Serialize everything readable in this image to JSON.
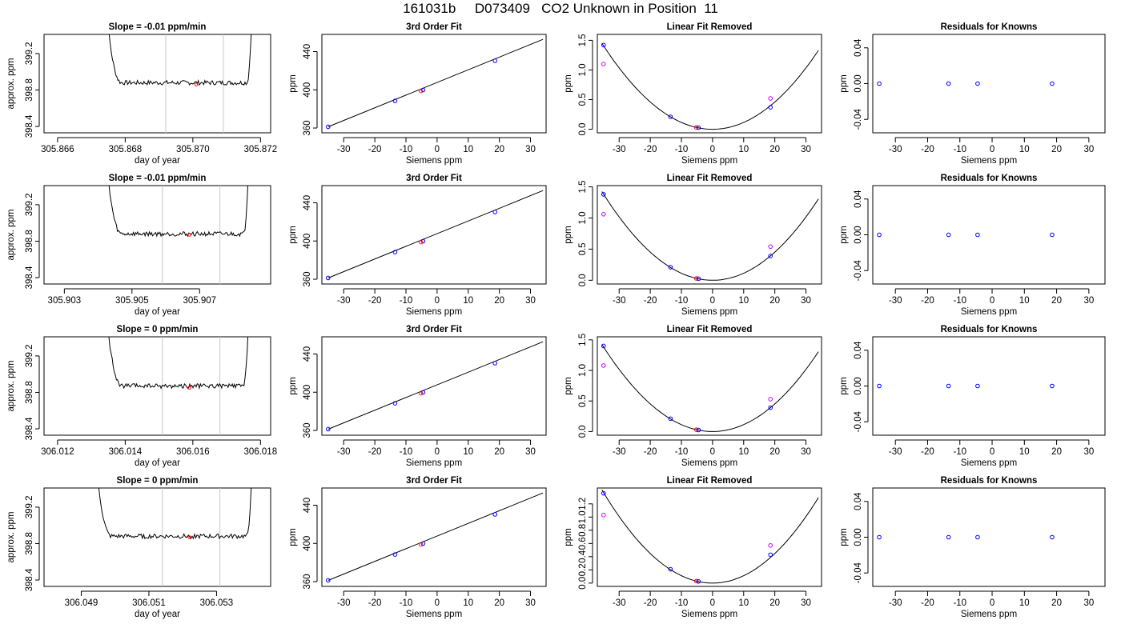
{
  "figure_title": "161031b     D073409   CO2 Unknown in Position  11",
  "colors": {
    "line": "#000000",
    "point_blue": "#0000ff",
    "point_magenta": "#cc00ff",
    "point_red": "#ff0000",
    "vline": "#c8c8c8",
    "axis": "#000000"
  },
  "chart_data": [
    {
      "type": "line",
      "row": 0,
      "col": 0,
      "title": "Slope =  -0.01  ppm/min",
      "xlabel": "day of year",
      "ylabel": "approx. ppm",
      "xlim": [
        305.8656,
        305.8723
      ],
      "ylim": [
        398.33,
        399.41
      ],
      "xticks": [
        305.866,
        305.868,
        305.87,
        305.872
      ],
      "xticklabels": [
        "305.866",
        "305.868",
        "305.870",
        "305.872"
      ],
      "yticks": [
        398.4,
        398.8,
        399.2
      ],
      "yticklabels": [
        "398.4",
        "398.8",
        "399.2"
      ],
      "trace": {
        "x_start": 305.8673,
        "x_end": 305.8718,
        "x_settle": 305.8675,
        "x_end_rise": 305.8716,
        "level": 398.88,
        "noise": 0.025
      },
      "vlines": [
        305.8692,
        305.8709
      ],
      "marker": {
        "x": 305.8701,
        "y": 398.86
      }
    },
    {
      "type": "scatter_fit",
      "row": 0,
      "col": 1,
      "title": "3rd Order Fit",
      "xlabel": "Siemens ppm",
      "ylabel": "ppm",
      "xlim": [
        -37,
        35
      ],
      "ylim": [
        355,
        458
      ],
      "xticks": [
        -30,
        -20,
        -10,
        0,
        10,
        20,
        30
      ],
      "yticks": [
        360,
        400,
        440
      ],
      "line": {
        "x": [
          -35,
          34
        ],
        "y": [
          361.3,
          452.8
        ]
      },
      "points": [
        {
          "x": -35,
          "y": 361.3,
          "c": "blue"
        },
        {
          "x": -13.5,
          "y": 388.4,
          "c": "blue"
        },
        {
          "x": -5.2,
          "y": 398.9,
          "c": "red"
        },
        {
          "x": -4.5,
          "y": 399.8,
          "c": "blue"
        },
        {
          "x": 18.6,
          "y": 430.4,
          "c": "blue"
        }
      ]
    },
    {
      "type": "scatter_curve",
      "row": 0,
      "col": 2,
      "title": "Linear Fit Removed",
      "xlabel": "Siemens ppm",
      "ylabel": "ppm",
      "xlim": [
        -37,
        35
      ],
      "ylim": [
        -0.06,
        1.6
      ],
      "xticks": [
        -30,
        -20,
        -10,
        0,
        10,
        20,
        30
      ],
      "yticks": [
        0,
        0.5,
        1,
        1.5
      ],
      "yticklabels": [
        "0.0",
        "0.5",
        "1.0",
        "1.5"
      ],
      "curve": {
        "a": 0.00115,
        "x_from": -35.5,
        "x_to": 34
      },
      "points": [
        {
          "x": -35,
          "y": 1.42,
          "c": "blue"
        },
        {
          "x": -35,
          "y": 1.1,
          "c": "magenta"
        },
        {
          "x": -13.5,
          "y": 0.21,
          "c": "blue"
        },
        {
          "x": -5.2,
          "y": 0.03,
          "c": "red"
        },
        {
          "x": -4.5,
          "y": 0.025,
          "c": "blue"
        },
        {
          "x": 18.6,
          "y": 0.37,
          "c": "blue"
        },
        {
          "x": 18.6,
          "y": 0.52,
          "c": "magenta"
        }
      ]
    },
    {
      "type": "scatter",
      "row": 0,
      "col": 3,
      "title": "Residuals for Knowns",
      "xlabel": "Siemens ppm",
      "ylabel": "ppm",
      "xlim": [
        -37,
        35
      ],
      "ylim": [
        -0.055,
        0.055
      ],
      "xticks": [
        -30,
        -20,
        -10,
        0,
        10,
        20,
        30
      ],
      "yticks": [
        -0.04,
        0,
        0.04
      ],
      "yticklabels": [
        "-0.04",
        "0.00",
        "0.04"
      ],
      "points": [
        {
          "x": -35,
          "y": 0,
          "c": "blue"
        },
        {
          "x": -13.5,
          "y": 0,
          "c": "blue"
        },
        {
          "x": -4.5,
          "y": 0,
          "c": "blue"
        },
        {
          "x": 18.6,
          "y": 0,
          "c": "blue"
        }
      ]
    },
    {
      "type": "line",
      "row": 1,
      "col": 0,
      "title": "Slope =  -0.01  ppm/min",
      "xlabel": "day of year",
      "ylabel": "approx. ppm",
      "xlim": [
        305.9024,
        305.9091
      ],
      "ylim": [
        398.33,
        399.41
      ],
      "xticks": [
        305.903,
        305.905,
        305.907
      ],
      "xticklabels": [
        "305.903",
        "305.905",
        "305.907"
      ],
      "yticks": [
        398.4,
        398.8,
        399.2
      ],
      "yticklabels": [
        "398.4",
        "398.8",
        "399.2"
      ],
      "trace": {
        "x_start": 305.9041,
        "x_end": 305.9085,
        "x_settle": 305.9043,
        "x_end_rise": 305.9083,
        "level": 398.88,
        "noise": 0.025
      },
      "vlines": [
        305.9059,
        305.9076
      ],
      "marker": {
        "x": 305.9067,
        "y": 398.87
      }
    },
    {
      "type": "scatter_fit",
      "row": 1,
      "col": 1,
      "title": "3rd Order Fit",
      "xlabel": "Siemens ppm",
      "ylabel": "ppm",
      "xlim": [
        -37,
        35
      ],
      "ylim": [
        355,
        458
      ],
      "xticks": [
        -30,
        -20,
        -10,
        0,
        10,
        20,
        30
      ],
      "yticks": [
        360,
        400,
        440
      ],
      "line": {
        "x": [
          -35,
          34
        ],
        "y": [
          361.3,
          452.8
        ]
      },
      "points": [
        {
          "x": -35,
          "y": 361.3,
          "c": "blue"
        },
        {
          "x": -13.5,
          "y": 388.4,
          "c": "blue"
        },
        {
          "x": -5.2,
          "y": 398.9,
          "c": "red"
        },
        {
          "x": -4.5,
          "y": 399.8,
          "c": "blue"
        },
        {
          "x": 18.6,
          "y": 430.4,
          "c": "blue"
        }
      ]
    },
    {
      "type": "scatter_curve",
      "row": 1,
      "col": 2,
      "title": "Linear Fit Removed",
      "xlabel": "Siemens ppm",
      "ylabel": "ppm",
      "xlim": [
        -37,
        35
      ],
      "ylim": [
        -0.06,
        1.52
      ],
      "xticks": [
        -30,
        -20,
        -10,
        0,
        10,
        20,
        30
      ],
      "yticks": [
        0,
        0.5,
        1,
        1.5
      ],
      "yticklabels": [
        "0.0",
        "0.5",
        "1.0",
        "1.5"
      ],
      "curve": {
        "a": 0.00113,
        "x_from": -35.5,
        "x_to": 34
      },
      "points": [
        {
          "x": -35,
          "y": 1.38,
          "c": "blue"
        },
        {
          "x": -35,
          "y": 1.06,
          "c": "magenta"
        },
        {
          "x": -13.5,
          "y": 0.21,
          "c": "blue"
        },
        {
          "x": -5.2,
          "y": 0.03,
          "c": "red"
        },
        {
          "x": -4.5,
          "y": 0.025,
          "c": "blue"
        },
        {
          "x": 18.6,
          "y": 0.39,
          "c": "blue"
        },
        {
          "x": 18.6,
          "y": 0.54,
          "c": "magenta"
        }
      ]
    },
    {
      "type": "scatter",
      "row": 1,
      "col": 3,
      "title": "Residuals for Knowns",
      "xlabel": "Siemens ppm",
      "ylabel": "ppm",
      "xlim": [
        -37,
        35
      ],
      "ylim": [
        -0.055,
        0.055
      ],
      "xticks": [
        -30,
        -20,
        -10,
        0,
        10,
        20,
        30
      ],
      "yticks": [
        -0.04,
        0,
        0.04
      ],
      "yticklabels": [
        "-0.04",
        "0.00",
        "0.04"
      ],
      "points": [
        {
          "x": -35,
          "y": 0,
          "c": "blue"
        },
        {
          "x": -13.5,
          "y": 0,
          "c": "blue"
        },
        {
          "x": -4.5,
          "y": 0,
          "c": "blue"
        },
        {
          "x": 18.6,
          "y": 0,
          "c": "blue"
        }
      ]
    },
    {
      "type": "line",
      "row": 2,
      "col": 0,
      "title": "Slope =  0  ppm/min",
      "xlabel": "day of year",
      "ylabel": "approx. ppm",
      "xlim": [
        306.0116,
        306.0183
      ],
      "ylim": [
        398.33,
        399.41
      ],
      "xticks": [
        306.012,
        306.014,
        306.016,
        306.018
      ],
      "xticklabels": [
        "306.012",
        "306.014",
        "306.016",
        "306.018"
      ],
      "yticks": [
        398.4,
        398.8,
        399.2
      ],
      "yticklabels": [
        "398.4",
        "398.8",
        "399.2"
      ],
      "trace": {
        "x_start": 306.0133,
        "x_end": 306.0177,
        "x_settle": 306.0135,
        "x_end_rise": 306.0175,
        "level": 398.87,
        "noise": 0.025
      },
      "vlines": [
        306.0151,
        306.0168
      ],
      "marker": {
        "x": 306.0159,
        "y": 398.85
      }
    },
    {
      "type": "scatter_fit",
      "row": 2,
      "col": 1,
      "title": "3rd Order Fit",
      "xlabel": "Siemens ppm",
      "ylabel": "ppm",
      "xlim": [
        -37,
        35
      ],
      "ylim": [
        355,
        458
      ],
      "xticks": [
        -30,
        -20,
        -10,
        0,
        10,
        20,
        30
      ],
      "yticks": [
        360,
        400,
        440
      ],
      "line": {
        "x": [
          -35,
          34
        ],
        "y": [
          361.3,
          452.8
        ]
      },
      "points": [
        {
          "x": -35,
          "y": 361.3,
          "c": "blue"
        },
        {
          "x": -13.5,
          "y": 388.4,
          "c": "blue"
        },
        {
          "x": -5.2,
          "y": 398.9,
          "c": "red"
        },
        {
          "x": -4.5,
          "y": 399.8,
          "c": "blue"
        },
        {
          "x": 18.6,
          "y": 430.4,
          "c": "blue"
        }
      ]
    },
    {
      "type": "scatter_curve",
      "row": 2,
      "col": 2,
      "title": "Linear Fit Removed",
      "xlabel": "Siemens ppm",
      "ylabel": "ppm",
      "xlim": [
        -37,
        35
      ],
      "ylim": [
        -0.06,
        1.55
      ],
      "xticks": [
        -30,
        -20,
        -10,
        0,
        10,
        20,
        30
      ],
      "yticks": [
        0,
        0.5,
        1,
        1.5
      ],
      "yticklabels": [
        "0.0",
        "0.5",
        "1.0",
        "1.5"
      ],
      "curve": {
        "a": 0.00113,
        "x_from": -35.5,
        "x_to": 34
      },
      "points": [
        {
          "x": -35,
          "y": 1.4,
          "c": "blue"
        },
        {
          "x": -35,
          "y": 1.08,
          "c": "magenta"
        },
        {
          "x": -13.5,
          "y": 0.21,
          "c": "blue"
        },
        {
          "x": -5.2,
          "y": 0.03,
          "c": "red"
        },
        {
          "x": -4.5,
          "y": 0.025,
          "c": "blue"
        },
        {
          "x": 18.6,
          "y": 0.39,
          "c": "blue"
        },
        {
          "x": 18.6,
          "y": 0.53,
          "c": "magenta"
        }
      ]
    },
    {
      "type": "scatter",
      "row": 2,
      "col": 3,
      "title": "Residuals for Knowns",
      "xlabel": "Siemens ppm",
      "ylabel": "ppm",
      "xlim": [
        -37,
        35
      ],
      "ylim": [
        -0.055,
        0.055
      ],
      "xticks": [
        -30,
        -20,
        -10,
        0,
        10,
        20,
        30
      ],
      "yticks": [
        -0.04,
        0,
        0.04
      ],
      "yticklabels": [
        "-0.04",
        "0.00",
        "0.04"
      ],
      "points": [
        {
          "x": -35,
          "y": 0,
          "c": "blue"
        },
        {
          "x": -13.5,
          "y": 0,
          "c": "blue"
        },
        {
          "x": -4.5,
          "y": 0,
          "c": "blue"
        },
        {
          "x": 18.6,
          "y": 0,
          "c": "blue"
        }
      ]
    },
    {
      "type": "line",
      "row": 3,
      "col": 0,
      "title": "Slope =  0  ppm/min",
      "xlabel": "day of year",
      "ylabel": "approx. ppm",
      "xlim": [
        306.0479,
        306.0546
      ],
      "ylim": [
        398.33,
        399.41
      ],
      "xticks": [
        306.049,
        306.051,
        306.053
      ],
      "xticklabels": [
        "306.049",
        "306.051",
        "306.053"
      ],
      "yticks": [
        398.4,
        398.8,
        399.2
      ],
      "yticklabels": [
        "398.4",
        "398.8",
        "399.2"
      ],
      "trace": {
        "x_start": 306.0492,
        "x_end": 306.0541,
        "x_settle": 306.0495,
        "x_end_rise": 306.0539,
        "level": 398.88,
        "noise": 0.025
      },
      "vlines": [
        306.0514,
        306.0531
      ],
      "marker": {
        "x": 306.0522,
        "y": 398.87
      }
    },
    {
      "type": "scatter_fit",
      "row": 3,
      "col": 1,
      "title": "3rd Order Fit",
      "xlabel": "Siemens ppm",
      "ylabel": "ppm",
      "xlim": [
        -37,
        35
      ],
      "ylim": [
        355,
        458
      ],
      "xticks": [
        -30,
        -20,
        -10,
        0,
        10,
        20,
        30
      ],
      "yticks": [
        360,
        400,
        440
      ],
      "line": {
        "x": [
          -35,
          34
        ],
        "y": [
          361.3,
          452.8
        ]
      },
      "points": [
        {
          "x": -35,
          "y": 361.3,
          "c": "blue"
        },
        {
          "x": -13.5,
          "y": 388.4,
          "c": "blue"
        },
        {
          "x": -5.2,
          "y": 398.9,
          "c": "red"
        },
        {
          "x": -4.5,
          "y": 399.8,
          "c": "blue"
        },
        {
          "x": 18.6,
          "y": 430.4,
          "c": "blue"
        }
      ]
    },
    {
      "type": "scatter_curve",
      "row": 3,
      "col": 2,
      "title": "Linear Fit Removed",
      "xlabel": "Siemens ppm",
      "ylabel": "ppm",
      "xlim": [
        -37,
        35
      ],
      "ylim": [
        -0.05,
        1.44
      ],
      "xticks": [
        -30,
        -20,
        -10,
        0,
        10,
        20,
        30
      ],
      "yticks": [
        0,
        0.2,
        0.4,
        0.6,
        0.8,
        1,
        1.2
      ],
      "yticklabels": [
        "0.0",
        "0.2",
        "0.4",
        "0.6",
        "0.8",
        "1.0",
        "1.2"
      ],
      "curve": {
        "a": 0.00112,
        "x_from": -35.5,
        "x_to": 34
      },
      "points": [
        {
          "x": -35,
          "y": 1.36,
          "c": "blue"
        },
        {
          "x": -35,
          "y": 1.03,
          "c": "magenta"
        },
        {
          "x": -13.5,
          "y": 0.21,
          "c": "blue"
        },
        {
          "x": -5.2,
          "y": 0.03,
          "c": "red"
        },
        {
          "x": -4.5,
          "y": 0.025,
          "c": "blue"
        },
        {
          "x": 18.6,
          "y": 0.43,
          "c": "blue"
        },
        {
          "x": 18.6,
          "y": 0.57,
          "c": "magenta"
        }
      ]
    },
    {
      "type": "scatter",
      "row": 3,
      "col": 3,
      "title": "Residuals for Knowns",
      "xlabel": "Siemens ppm",
      "ylabel": "ppm",
      "xlim": [
        -37,
        35
      ],
      "ylim": [
        -0.055,
        0.055
      ],
      "xticks": [
        -30,
        -20,
        -10,
        0,
        10,
        20,
        30
      ],
      "yticks": [
        -0.04,
        0,
        0.04
      ],
      "yticklabels": [
        "-0.04",
        "0.00",
        "0.04"
      ],
      "points": [
        {
          "x": -35,
          "y": 0,
          "c": "blue"
        },
        {
          "x": -13.5,
          "y": 0,
          "c": "blue"
        },
        {
          "x": -4.5,
          "y": 0,
          "c": "blue"
        },
        {
          "x": 18.6,
          "y": 0,
          "c": "blue"
        }
      ]
    }
  ]
}
